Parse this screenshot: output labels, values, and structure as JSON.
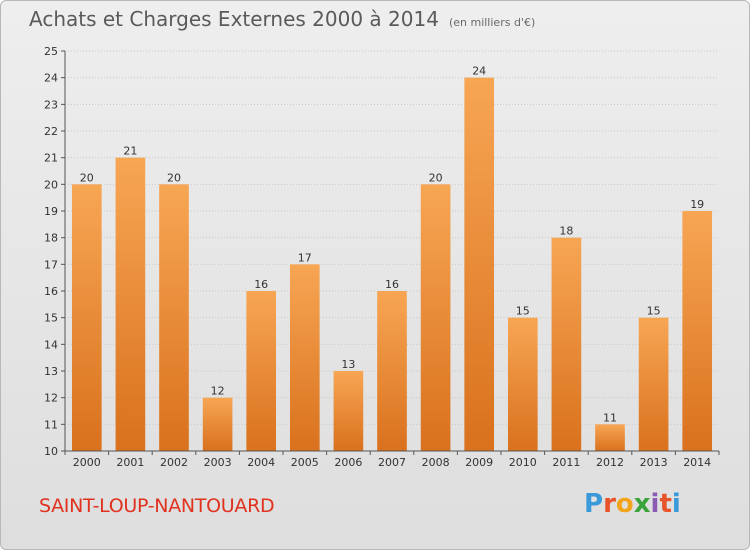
{
  "header": {
    "title": "Achats et Charges Externes 2000 à 2014",
    "subtitle": "(en milliers d'€)"
  },
  "footer": {
    "commune": "SAINT-LOUP-NANTOUARD",
    "logo": "Proxiti",
    "logo_colors": [
      "#3a9ad9",
      "#e8542a",
      "#f2a41a",
      "#3aa33a",
      "#8b5ab4",
      "#e8542a",
      "#3a9ad9"
    ]
  },
  "colors": {
    "bar_light": "#f7a654",
    "bar_dark": "#d9711d",
    "grid": "#c8c8c8"
  },
  "chart_data": {
    "type": "bar",
    "title": "Achats et Charges Externes 2000 à 2014",
    "subtitle": "(en milliers d'€)",
    "categories": [
      "2000",
      "2001",
      "2002",
      "2003",
      "2004",
      "2005",
      "2006",
      "2007",
      "2008",
      "2009",
      "2010",
      "2011",
      "2012",
      "2013",
      "2014"
    ],
    "values": [
      20,
      21,
      20,
      12,
      16,
      17,
      13,
      16,
      20,
      24,
      15,
      18,
      11,
      15,
      19
    ],
    "ylim": [
      10,
      25
    ],
    "yticks": [
      10,
      11,
      12,
      13,
      14,
      15,
      16,
      17,
      18,
      19,
      20,
      21,
      22,
      23,
      24,
      25
    ],
    "grid": true,
    "data_labels": true
  }
}
